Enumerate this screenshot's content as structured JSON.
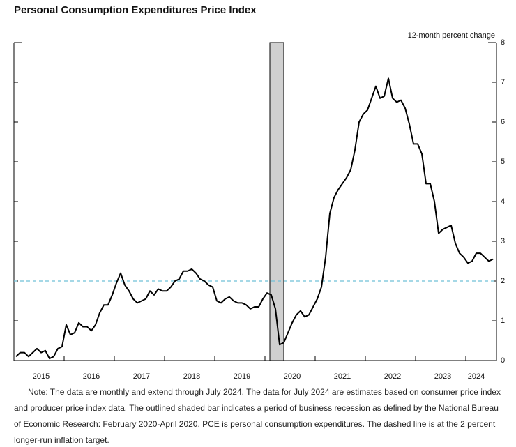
{
  "chart_data": {
    "type": "line",
    "title": "Personal Consumption Expenditures Price Index",
    "y_axis_label": "12-month percent change",
    "categories": [
      null,
      null,
      null,
      null,
      null,
      null,
      "2015",
      null,
      null,
      null,
      null,
      null,
      null,
      null,
      null,
      null,
      null,
      null,
      "2016",
      null,
      null,
      null,
      null,
      null,
      null,
      null,
      null,
      null,
      null,
      null,
      "2017",
      null,
      null,
      null,
      null,
      null,
      null,
      null,
      null,
      null,
      null,
      null,
      "2018",
      null,
      null,
      null,
      null,
      null,
      null,
      null,
      null,
      null,
      null,
      null,
      "2019",
      null,
      null,
      null,
      null,
      null,
      null,
      null,
      null,
      null,
      null,
      null,
      "2020",
      null,
      null,
      null,
      null,
      null,
      null,
      null,
      null,
      null,
      null,
      null,
      "2021",
      null,
      null,
      null,
      null,
      null,
      null,
      null,
      null,
      null,
      null,
      null,
      "2022",
      null,
      null,
      null,
      null,
      null,
      null,
      null,
      null,
      null,
      null,
      null,
      "2023",
      null,
      null,
      null,
      null,
      null,
      null,
      null,
      "2024",
      null,
      null,
      null,
      null
    ],
    "series": [
      {
        "name": "PCE",
        "color": "#000000",
        "values": [
          0.1,
          0.2,
          0.2,
          0.1,
          0.2,
          0.3,
          0.2,
          0.25,
          0.05,
          0.1,
          0.3,
          0.35,
          0.9,
          0.65,
          0.7,
          0.95,
          0.85,
          0.85,
          0.75,
          0.9,
          1.2,
          1.4,
          1.4,
          1.65,
          1.95,
          2.2,
          1.9,
          1.75,
          1.55,
          1.45,
          1.5,
          1.55,
          1.75,
          1.65,
          1.8,
          1.75,
          1.75,
          1.85,
          2.0,
          2.05,
          2.25,
          2.25,
          2.3,
          2.2,
          2.05,
          2.0,
          1.9,
          1.85,
          1.5,
          1.45,
          1.55,
          1.6,
          1.5,
          1.45,
          1.45,
          1.4,
          1.3,
          1.35,
          1.35,
          1.55,
          1.7,
          1.65,
          1.3,
          0.4,
          0.45,
          0.7,
          0.95,
          1.15,
          1.25,
          1.1,
          1.15,
          1.35,
          1.55,
          1.85,
          2.6,
          3.7,
          4.1,
          4.3,
          4.45,
          4.6,
          4.8,
          5.3,
          6.0,
          6.2,
          6.3,
          6.6,
          6.9,
          6.6,
          6.65,
          7.1,
          6.6,
          6.5,
          6.55,
          6.35,
          5.95,
          5.45,
          5.45,
          5.2,
          4.45,
          4.45,
          4.0,
          3.2,
          3.3,
          3.35,
          3.4,
          2.95,
          2.7,
          2.6,
          2.45,
          2.5,
          2.7,
          2.7,
          2.6,
          2.5,
          2.55
        ]
      }
    ],
    "ylim": [
      0,
      8
    ],
    "yticks": [
      0,
      1,
      2,
      3,
      4,
      5,
      6,
      7,
      8
    ],
    "reference_line": {
      "value": 2,
      "color": "#6fc0d8"
    },
    "recession": {
      "start": 61,
      "end": 63,
      "color": "#d0d0d0"
    },
    "note": [
      "Note: The data are monthly and extend through July 2024. The data for July 2024 are estimates based on consumer price index",
      "and producer price index data. The outlined shaded bar indicates a period of business recession as defined by the National Bureau",
      "of Economic Research: February 2020-April 2020. PCE is personal consumption expenditures. The dashed line is at the 2 percent",
      "longer-run inflation target."
    ]
  }
}
